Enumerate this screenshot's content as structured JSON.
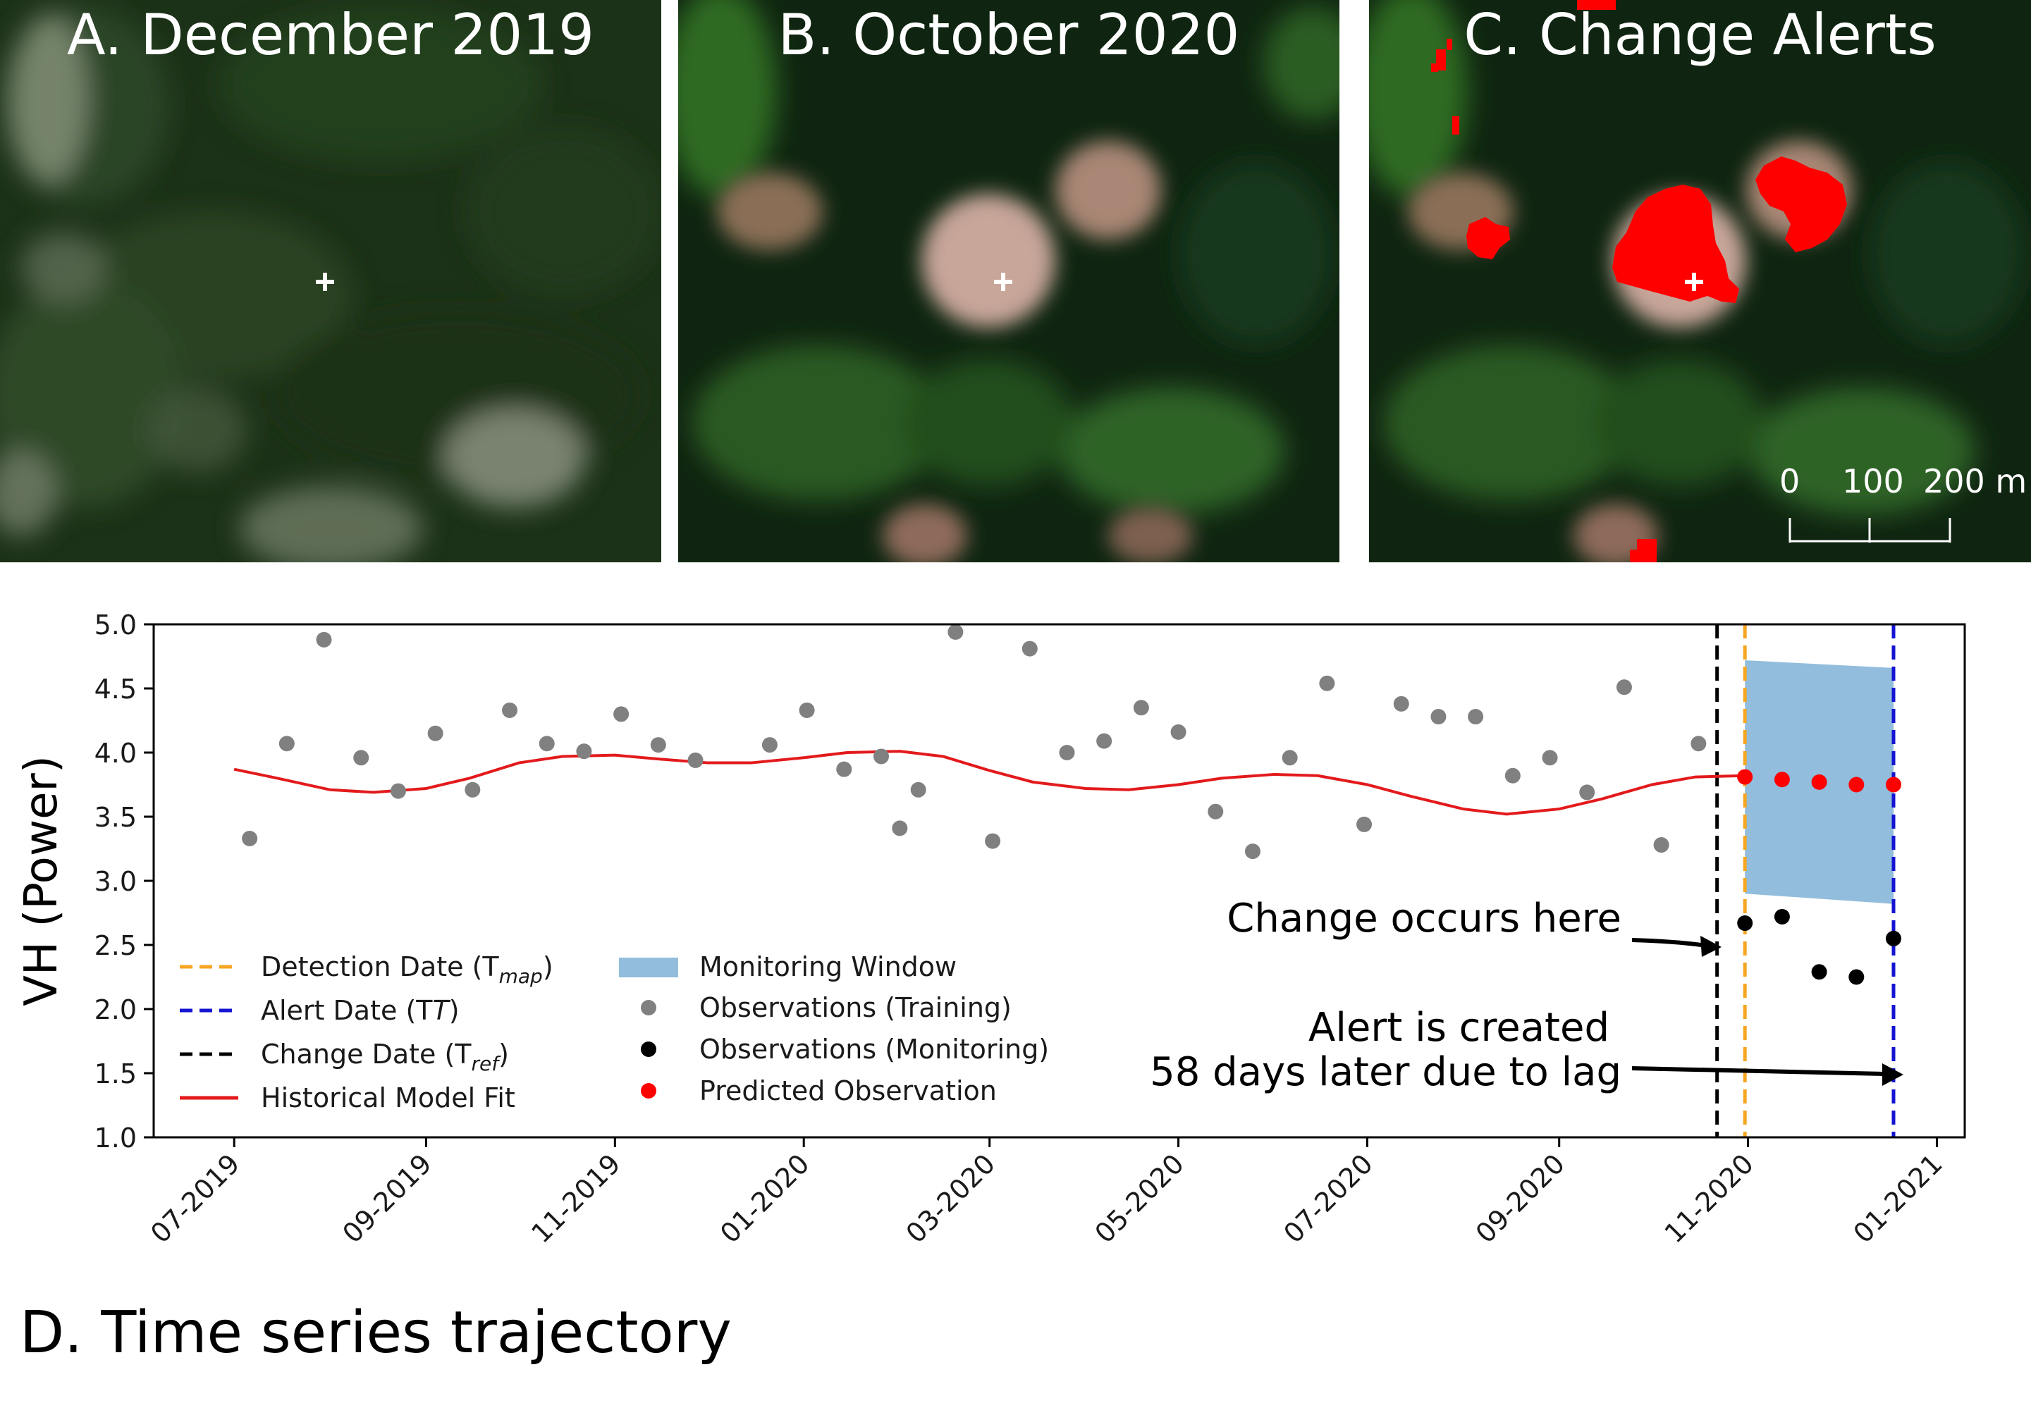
{
  "panels": {
    "a_title": "A. December 2019",
    "b_title": "B. October 2020",
    "c_title": "C. Change Alerts",
    "d_title": "D. Time series trajectory",
    "scale_labels": [
      "0",
      "100",
      "200 m"
    ]
  },
  "chart_data": {
    "type": "scatter",
    "title": "",
    "xlabel": "",
    "ylabel": "VH (Power)",
    "ylim": [
      1.0,
      5.0
    ],
    "yticks": [
      "1.0",
      "1.5",
      "2.0",
      "2.5",
      "3.0",
      "3.5",
      "4.0",
      "4.5",
      "5.0"
    ],
    "xlim": [
      "2019-06-05",
      "2021-01-10"
    ],
    "xticks": [
      {
        "date": "2019-07-01",
        "label": "07-2019"
      },
      {
        "date": "2019-09-01",
        "label": "09-2019"
      },
      {
        "date": "2019-11-01",
        "label": "11-2019"
      },
      {
        "date": "2020-01-01",
        "label": "01-2020"
      },
      {
        "date": "2020-03-01",
        "label": "03-2020"
      },
      {
        "date": "2020-05-01",
        "label": "05-2020"
      },
      {
        "date": "2020-07-01",
        "label": "07-2020"
      },
      {
        "date": "2020-09-01",
        "label": "09-2020"
      },
      {
        "date": "2020-11-01",
        "label": "11-2020"
      },
      {
        "date": "2021-01-01",
        "label": "01-2021"
      }
    ],
    "grid": false,
    "legend_position": "bottom-left",
    "legend": {
      "detection": "Detection Date (T",
      "detection_sub": "map",
      "alert": "Alert Date (T",
      "change": "Change Date (T",
      "change_sub": "ref",
      "close_paren": ")",
      "model": "Historical Model Fit",
      "window": "Monitoring Window",
      "training": "Observations (Training)",
      "monitoring": "Observations (Monitoring)",
      "predicted": "Predicted Observation"
    },
    "colors": {
      "training": "#808080",
      "monitoring": "#000000",
      "predicted": "#ff0000",
      "model_fit": "#e31a1c",
      "detection": "#f5a623",
      "alert": "#1414d2",
      "change": "#000000",
      "window": "#92bddc"
    },
    "change_date": "2020-10-22",
    "detection_date": "2020-10-31",
    "alert_date": "2020-12-18",
    "monitoring_window": {
      "x": [
        "2020-10-31",
        "2020-12-18"
      ],
      "upper": [
        4.72,
        4.66
      ],
      "lower": [
        2.9,
        2.82
      ]
    },
    "observations_training": [
      {
        "x": "2019-07-06",
        "y": 3.33
      },
      {
        "x": "2019-07-18",
        "y": 4.07
      },
      {
        "x": "2019-07-30",
        "y": 4.88
      },
      {
        "x": "2019-08-11",
        "y": 3.96
      },
      {
        "x": "2019-08-23",
        "y": 3.7
      },
      {
        "x": "2019-09-04",
        "y": 4.15
      },
      {
        "x": "2019-09-16",
        "y": 3.71
      },
      {
        "x": "2019-09-28",
        "y": 4.33
      },
      {
        "x": "2019-10-10",
        "y": 4.07
      },
      {
        "x": "2019-10-22",
        "y": 4.01
      },
      {
        "x": "2019-11-03",
        "y": 4.3
      },
      {
        "x": "2019-11-15",
        "y": 4.06
      },
      {
        "x": "2019-11-27",
        "y": 3.94
      },
      {
        "x": "2019-12-21",
        "y": 4.06
      },
      {
        "x": "2020-01-02",
        "y": 4.33
      },
      {
        "x": "2020-01-14",
        "y": 3.87
      },
      {
        "x": "2020-01-26",
        "y": 3.97
      },
      {
        "x": "2020-02-01",
        "y": 3.41
      },
      {
        "x": "2020-02-07",
        "y": 3.71
      },
      {
        "x": "2020-02-19",
        "y": 4.94
      },
      {
        "x": "2020-03-02",
        "y": 3.31
      },
      {
        "x": "2020-03-14",
        "y": 4.81
      },
      {
        "x": "2020-03-26",
        "y": 4.0
      },
      {
        "x": "2020-04-07",
        "y": 4.09
      },
      {
        "x": "2020-04-19",
        "y": 4.35
      },
      {
        "x": "2020-05-01",
        "y": 4.16
      },
      {
        "x": "2020-05-13",
        "y": 3.54
      },
      {
        "x": "2020-05-25",
        "y": 3.23
      },
      {
        "x": "2020-06-06",
        "y": 3.96
      },
      {
        "x": "2020-06-18",
        "y": 4.54
      },
      {
        "x": "2020-06-30",
        "y": 3.44
      },
      {
        "x": "2020-07-12",
        "y": 4.38
      },
      {
        "x": "2020-07-24",
        "y": 4.28
      },
      {
        "x": "2020-08-05",
        "y": 4.28
      },
      {
        "x": "2020-08-17",
        "y": 3.82
      },
      {
        "x": "2020-08-29",
        "y": 3.96
      },
      {
        "x": "2020-09-10",
        "y": 3.69
      },
      {
        "x": "2020-09-22",
        "y": 4.51
      },
      {
        "x": "2020-10-04",
        "y": 3.28
      },
      {
        "x": "2020-10-16",
        "y": 4.07
      }
    ],
    "observations_monitoring": [
      {
        "x": "2020-10-31",
        "y": 2.67
      },
      {
        "x": "2020-11-12",
        "y": 2.72
      },
      {
        "x": "2020-11-24",
        "y": 2.29
      },
      {
        "x": "2020-12-06",
        "y": 2.25
      },
      {
        "x": "2020-12-18",
        "y": 2.55
      }
    ],
    "predicted_observations": [
      {
        "x": "2020-10-31",
        "y": 3.81
      },
      {
        "x": "2020-11-12",
        "y": 3.79
      },
      {
        "x": "2020-11-24",
        "y": 3.77
      },
      {
        "x": "2020-12-06",
        "y": 3.75
      },
      {
        "x": "2020-12-18",
        "y": 3.75
      }
    ],
    "model_fit": [
      {
        "x": "2019-07-01",
        "y": 3.87
      },
      {
        "x": "2019-07-15",
        "y": 3.8
      },
      {
        "x": "2019-08-01",
        "y": 3.71
      },
      {
        "x": "2019-08-15",
        "y": 3.69
      },
      {
        "x": "2019-09-01",
        "y": 3.72
      },
      {
        "x": "2019-09-15",
        "y": 3.8
      },
      {
        "x": "2019-10-01",
        "y": 3.92
      },
      {
        "x": "2019-10-15",
        "y": 3.97
      },
      {
        "x": "2019-11-01",
        "y": 3.98
      },
      {
        "x": "2019-11-15",
        "y": 3.95
      },
      {
        "x": "2019-12-01",
        "y": 3.92
      },
      {
        "x": "2019-12-15",
        "y": 3.92
      },
      {
        "x": "2020-01-01",
        "y": 3.96
      },
      {
        "x": "2020-01-15",
        "y": 4.0
      },
      {
        "x": "2020-02-01",
        "y": 4.01
      },
      {
        "x": "2020-02-15",
        "y": 3.97
      },
      {
        "x": "2020-03-01",
        "y": 3.86
      },
      {
        "x": "2020-03-15",
        "y": 3.77
      },
      {
        "x": "2020-04-01",
        "y": 3.72
      },
      {
        "x": "2020-04-15",
        "y": 3.71
      },
      {
        "x": "2020-05-01",
        "y": 3.75
      },
      {
        "x": "2020-05-15",
        "y": 3.8
      },
      {
        "x": "2020-06-01",
        "y": 3.83
      },
      {
        "x": "2020-06-15",
        "y": 3.82
      },
      {
        "x": "2020-07-01",
        "y": 3.75
      },
      {
        "x": "2020-07-15",
        "y": 3.66
      },
      {
        "x": "2020-08-01",
        "y": 3.56
      },
      {
        "x": "2020-08-15",
        "y": 3.52
      },
      {
        "x": "2020-09-01",
        "y": 3.56
      },
      {
        "x": "2020-09-15",
        "y": 3.64
      },
      {
        "x": "2020-10-01",
        "y": 3.75
      },
      {
        "x": "2020-10-15",
        "y": 3.81
      },
      {
        "x": "2020-10-31",
        "y": 3.82
      }
    ],
    "annotations": [
      {
        "text": "Change occurs here"
      },
      {
        "text": "Alert is created"
      },
      {
        "text": "58 days later due to lag"
      }
    ]
  }
}
